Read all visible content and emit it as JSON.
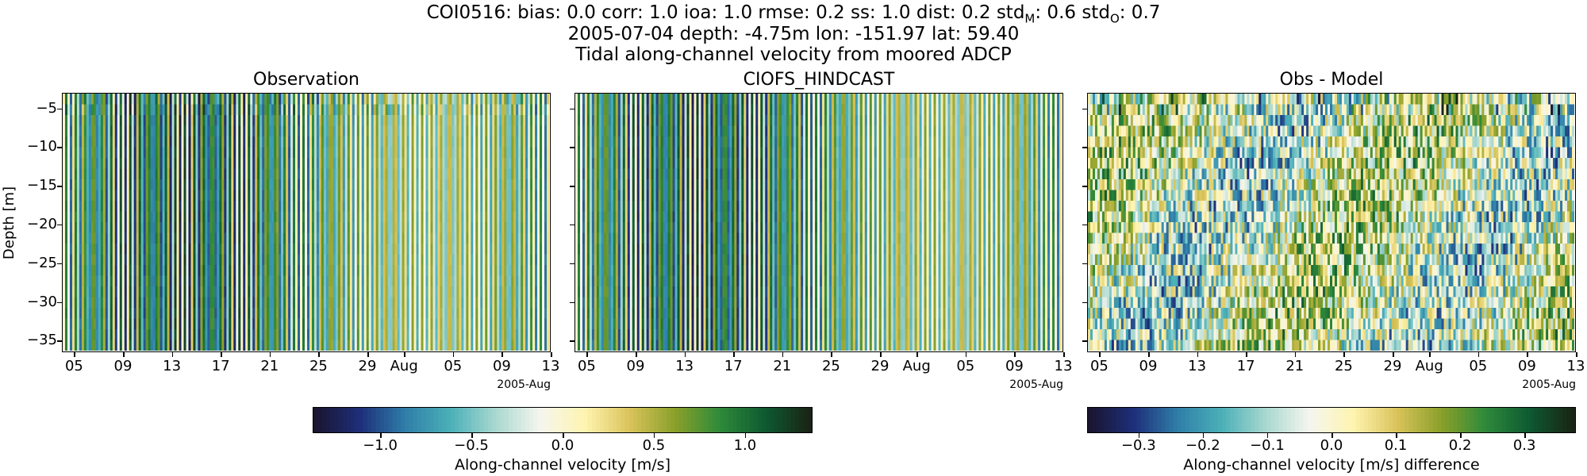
{
  "figure": {
    "title_line1": "COI0516: bias: 0.0  corr: 1.0  ioa: 1.0  rmse: 0.2  ss: 1.0  dist: 0.2  std",
    "title_sub_m": "M",
    "title_mid": ": 0.6  std",
    "title_sub_o": "O",
    "title_end": ": 0.7",
    "title_line2": "2005-07-04 depth: -4.75m lon: -151.97 lat: 59.40",
    "title_line3": "Tidal along-channel velocity from moored ADCP"
  },
  "colors": {
    "colormap": [
      "#1a1530",
      "#1e2f7a",
      "#2f7ea8",
      "#4bb0b8",
      "#a8d8cf",
      "#f5f5ee",
      "#fff4b0",
      "#d9c35a",
      "#8aa02a",
      "#2f8a3a",
      "#0e5a32",
      "#1a2414"
    ]
  },
  "chart_data": [
    {
      "type": "heatmap",
      "title": "Observation",
      "ylabel": "Depth [m]",
      "ylim": [
        -36.5,
        -3.0
      ],
      "yticks": [
        "-5",
        "-10",
        "-15",
        "-20",
        "-25",
        "-30",
        "-35"
      ],
      "xticks": [
        "05",
        "09",
        "13",
        "17",
        "21",
        "25",
        "29",
        "Aug",
        "05",
        "09",
        "13"
      ],
      "x_offset_label": "2005-Aug",
      "xrange": [
        "2005-07-04",
        "2005-08-13"
      ],
      "clim": [
        -1.37,
        1.37
      ]
    },
    {
      "type": "heatmap",
      "title": "CIOFS_HINDCAST",
      "ylim": [
        -36.5,
        -3.0
      ],
      "xticks": [
        "05",
        "09",
        "13",
        "17",
        "21",
        "25",
        "29",
        "Aug",
        "05",
        "09",
        "13"
      ],
      "x_offset_label": "2005-Aug",
      "xrange": [
        "2005-07-04",
        "2005-08-13"
      ],
      "clim": [
        -1.37,
        1.37
      ]
    },
    {
      "type": "heatmap",
      "title": "Obs - Model",
      "ylim": [
        -36.5,
        -3.0
      ],
      "xticks": [
        "05",
        "09",
        "13",
        "17",
        "21",
        "25",
        "29",
        "Aug",
        "05",
        "09",
        "13"
      ],
      "x_offset_label": "2005-Aug",
      "xrange": [
        "2005-07-04",
        "2005-08-13"
      ],
      "clim": [
        -0.38,
        0.38
      ]
    }
  ],
  "colorbars": [
    {
      "ticks": [
        "−1.0",
        "−0.5",
        "0.0",
        "0.5",
        "1.0"
      ],
      "tick_values": [
        -1.0,
        -0.5,
        0.0,
        0.5,
        1.0
      ],
      "range": [
        -1.37,
        1.37
      ],
      "label": "Along-channel velocity [m/s]"
    },
    {
      "ticks": [
        "−0.3",
        "−0.2",
        "−0.1",
        "0.0",
        "0.1",
        "0.2",
        "0.3"
      ],
      "tick_values": [
        -0.3,
        -0.2,
        -0.1,
        0.0,
        0.1,
        0.2,
        0.3
      ],
      "range": [
        -0.38,
        0.38
      ],
      "label": "Along-channel velocity [m/s] difference"
    }
  ]
}
